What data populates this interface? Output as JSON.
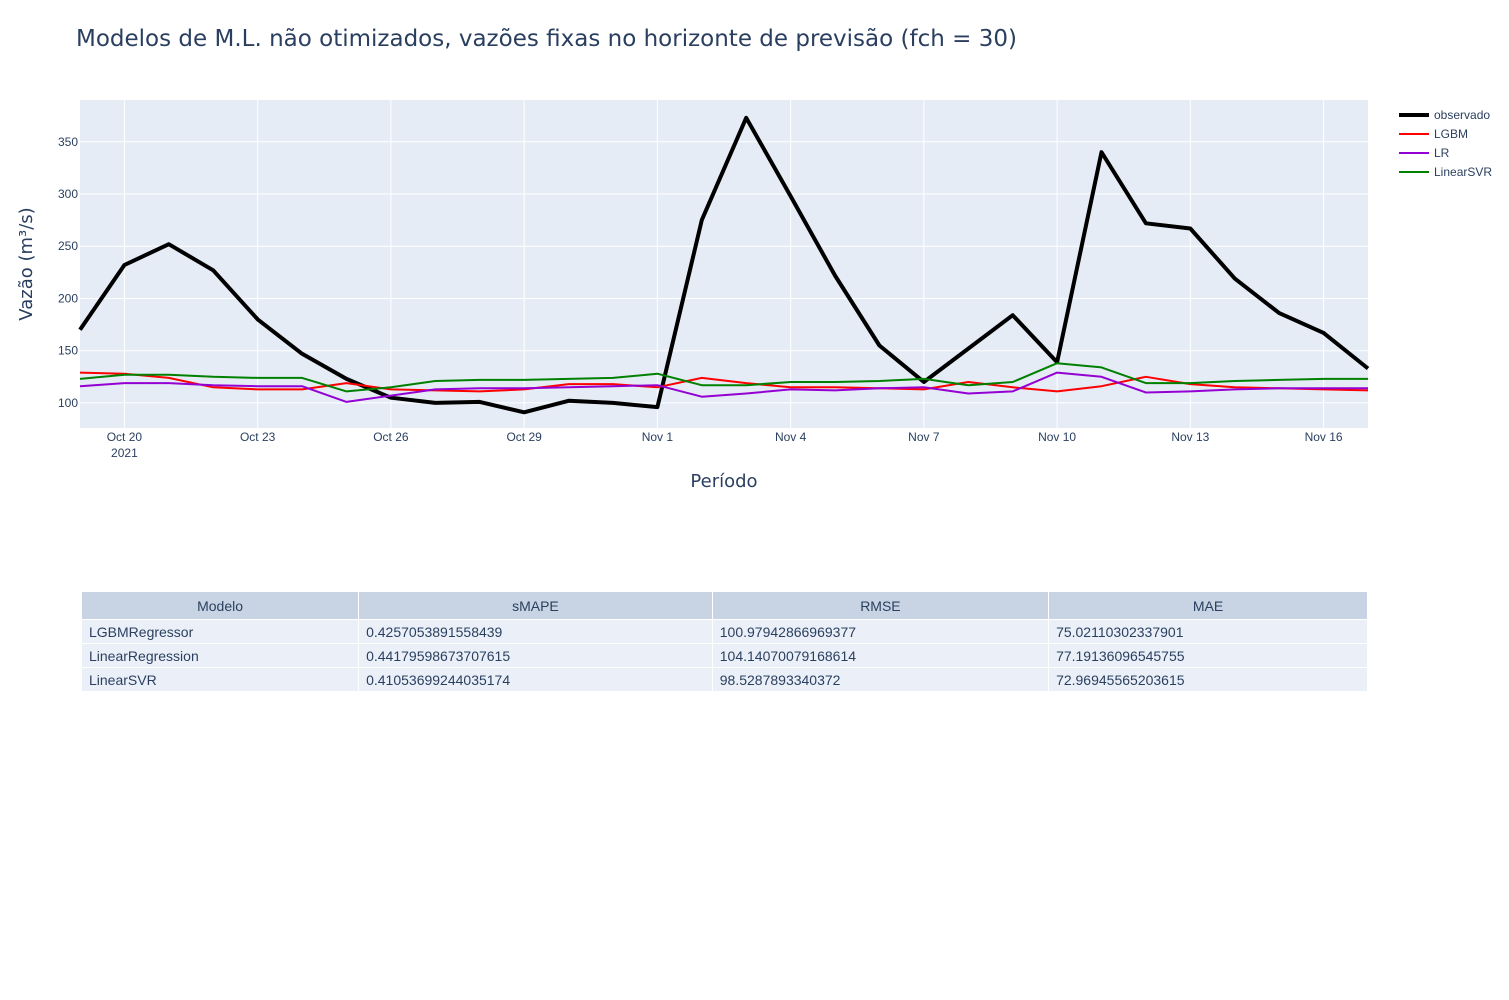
{
  "title": "Modelos de M.L. não otimizados, vazões fixas no horizonte de previsão (fch = 30)",
  "chart_data": {
    "type": "line",
    "xlabel": "Período",
    "ylabel": "Vazão (m³/s)",
    "x": [
      "2021-10-19",
      "2021-10-20",
      "2021-10-21",
      "2021-10-22",
      "2021-10-23",
      "2021-10-24",
      "2021-10-25",
      "2021-10-26",
      "2021-10-27",
      "2021-10-28",
      "2021-10-29",
      "2021-10-30",
      "2021-10-31",
      "2021-11-01",
      "2021-11-02",
      "2021-11-03",
      "2021-11-04",
      "2021-11-05",
      "2021-11-06",
      "2021-11-07",
      "2021-11-08",
      "2021-11-09",
      "2021-11-10",
      "2021-11-11",
      "2021-11-12",
      "2021-11-13",
      "2021-11-14",
      "2021-11-15",
      "2021-11-16",
      "2021-11-17"
    ],
    "xlim": [
      "2021-10-19",
      "2021-11-17"
    ],
    "ylim": [
      76,
      390
    ],
    "x_ticks": [
      {
        "date": "2021-10-20",
        "label": "Oct 20",
        "sublabel": "2021"
      },
      {
        "date": "2021-10-23",
        "label": "Oct 23",
        "sublabel": ""
      },
      {
        "date": "2021-10-26",
        "label": "Oct 26",
        "sublabel": ""
      },
      {
        "date": "2021-10-29",
        "label": "Oct 29",
        "sublabel": ""
      },
      {
        "date": "2021-11-01",
        "label": "Nov 1",
        "sublabel": ""
      },
      {
        "date": "2021-11-04",
        "label": "Nov 4",
        "sublabel": ""
      },
      {
        "date": "2021-11-07",
        "label": "Nov 7",
        "sublabel": ""
      },
      {
        "date": "2021-11-10",
        "label": "Nov 10",
        "sublabel": ""
      },
      {
        "date": "2021-11-13",
        "label": "Nov 13",
        "sublabel": ""
      },
      {
        "date": "2021-11-16",
        "label": "Nov 16",
        "sublabel": ""
      }
    ],
    "y_ticks": [
      100,
      150,
      200,
      250,
      300,
      350
    ],
    "grid": true,
    "legend_position": "top-right",
    "series": [
      {
        "name": "observado",
        "color": "#000000",
        "width": "thick",
        "values": [
          170,
          232,
          252,
          227,
          180,
          147,
          123,
          105,
          100,
          101,
          91,
          102,
          100,
          96,
          275,
          373,
          298,
          222,
          155,
          120,
          152,
          184,
          139,
          340,
          272,
          267,
          219,
          186,
          167,
          133
        ]
      },
      {
        "name": "LGBM",
        "color": "#ff0000",
        "width": "thin",
        "values": [
          129,
          128,
          124,
          115,
          113,
          113,
          119,
          113,
          112,
          111,
          113,
          118,
          118,
          115,
          124,
          119,
          115,
          115,
          114,
          113,
          120,
          115,
          111,
          116,
          125,
          118,
          115,
          114,
          113,
          112
        ]
      },
      {
        "name": "LR",
        "color": "#9400d3",
        "width": "thin",
        "values": [
          116,
          119,
          119,
          117,
          116,
          116,
          101,
          107,
          113,
          114,
          114,
          115,
          116,
          117,
          106,
          109,
          113,
          112,
          114,
          115,
          109,
          111,
          129,
          125,
          110,
          111,
          113,
          114,
          114,
          114
        ]
      },
      {
        "name": "LinearSVR",
        "color": "#008000",
        "width": "thin",
        "values": [
          123,
          127,
          127,
          125,
          124,
          124,
          111,
          115,
          121,
          122,
          122,
          123,
          124,
          128,
          117,
          117,
          120,
          120,
          121,
          123,
          117,
          120,
          138,
          134,
          119,
          119,
          121,
          122,
          123,
          123
        ]
      }
    ]
  },
  "table": {
    "headers": [
      "Modelo",
      "sMAPE",
      "RMSE",
      "MAE"
    ],
    "rows": [
      [
        "LGBMRegressor",
        "0.4257053891558439",
        "100.97942866969377",
        "75.02110302337901"
      ],
      [
        "LinearRegression",
        "0.44179598673707615",
        "104.14070079168614",
        "77.19136096545755"
      ],
      [
        "LinearSVR",
        "0.41053699244035174",
        "98.5287893340372",
        "72.96945565203615"
      ]
    ]
  }
}
